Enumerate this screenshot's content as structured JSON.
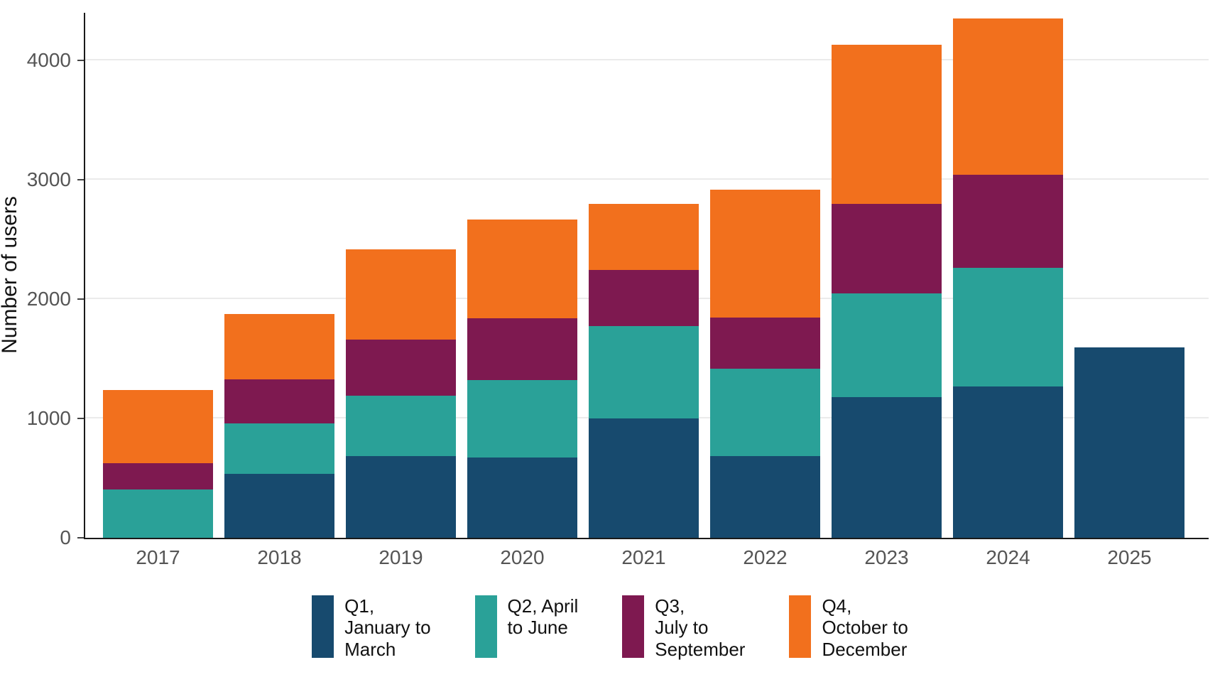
{
  "chart_data": {
    "type": "bar",
    "stacked": true,
    "title": "",
    "xlabel": "",
    "ylabel": "Number of users",
    "categories": [
      "2017",
      "2018",
      "2019",
      "2020",
      "2021",
      "2022",
      "2023",
      "2024",
      "2025"
    ],
    "series": [
      {
        "name": "Q1, January to March",
        "legend_label": "Q1,\nJanuary to\nMarch",
        "color": "#174A6E",
        "values": [
          0,
          535,
          685,
          675,
          1000,
          685,
          1180,
          1270,
          1595
        ]
      },
      {
        "name": "Q2, April to June",
        "legend_label": "Q2, April\nto June",
        "color": "#2AA198",
        "values": [
          405,
          425,
          505,
          645,
          775,
          730,
          870,
          990,
          0
        ]
      },
      {
        "name": "Q3, July to September",
        "legend_label": "Q3,\nJuly to\nSeptember",
        "color": "#7E1950",
        "values": [
          220,
          370,
          470,
          520,
          470,
          430,
          750,
          780,
          0
        ]
      },
      {
        "name": "Q4, October to December",
        "legend_label": "Q4,\nOctober to\nDecember",
        "color": "#F2701D",
        "values": [
          615,
          545,
          760,
          830,
          555,
          1070,
          1330,
          1310,
          0
        ]
      }
    ],
    "totals": [
      1240,
      1875,
      2420,
      2670,
      2800,
      2915,
      4130,
      4350,
      1595
    ],
    "ylim": [
      0,
      4400
    ],
    "yticks": [
      0,
      1000,
      2000,
      3000,
      4000
    ],
    "grid": "horizontal",
    "legend_position": "bottom"
  }
}
